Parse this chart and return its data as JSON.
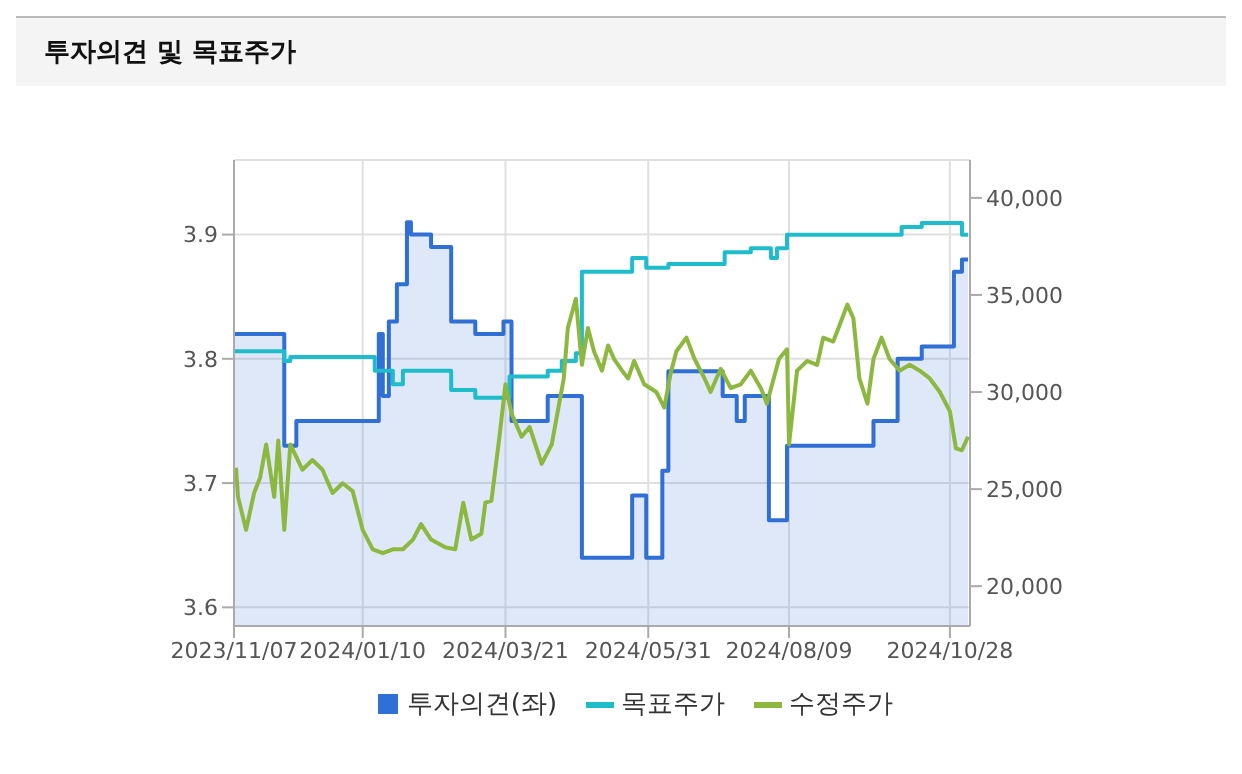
{
  "chart_data": {
    "type": "line",
    "title": "투자의견 및 목표주가",
    "xlim": [
      "2023-11-07",
      "2024-11-07"
    ],
    "xticks": [
      {
        "value": "2023-11-07",
        "label": "2023/11/07"
      },
      {
        "value": "2024-01-10",
        "label": "2024/01/10"
      },
      {
        "value": "2024-03-21",
        "label": "2024/03/21"
      },
      {
        "value": "2024-05-31",
        "label": "2024/05/31"
      },
      {
        "value": "2024-08-09",
        "label": "2024/08/09"
      },
      {
        "value": "2024-10-28",
        "label": "2024/10/28"
      }
    ],
    "ylim": [
      3.585,
      3.96
    ],
    "yticks": [
      3.6,
      3.7,
      3.8,
      3.9
    ],
    "y2lim": [
      17950,
      41950
    ],
    "y2ticks": [
      {
        "value": 20000,
        "label": "20,000"
      },
      {
        "value": 25000,
        "label": "25,000"
      },
      {
        "value": 30000,
        "label": "30,000"
      },
      {
        "value": 35000,
        "label": "35,000"
      },
      {
        "value": 40000,
        "label": "40,000"
      }
    ],
    "grid": true,
    "legend": "bottom",
    "marker": "none",
    "series": [
      {
        "name": "투자의견(좌)",
        "type": "area",
        "color": "#2f6fd6",
        "x": [
          "2023-11-07",
          "2023-12-02",
          "2023-12-02",
          "2023-12-08",
          "2023-12-08",
          "2024-01-18",
          "2024-01-18",
          "2024-01-20",
          "2024-01-20",
          "2024-01-23",
          "2024-01-23",
          "2024-01-27",
          "2024-01-27",
          "2024-02-01",
          "2024-02-01",
          "2024-02-03",
          "2024-02-03",
          "2024-02-13",
          "2024-02-13",
          "2024-02-23",
          "2024-02-23",
          "2024-03-06",
          "2024-03-06",
          "2024-03-20",
          "2024-03-20",
          "2024-03-24",
          "2024-03-24",
          "2024-04-11",
          "2024-04-11",
          "2024-04-28",
          "2024-04-28",
          "2024-05-23",
          "2024-05-23",
          "2024-05-30",
          "2024-05-30",
          "2024-06-07",
          "2024-06-07",
          "2024-06-10",
          "2024-06-10",
          "2024-07-07",
          "2024-07-07",
          "2024-07-14",
          "2024-07-14",
          "2024-07-18",
          "2024-07-18",
          "2024-07-30",
          "2024-07-30",
          "2024-08-08",
          "2024-08-08",
          "2024-09-20",
          "2024-09-20",
          "2024-10-02",
          "2024-10-02",
          "2024-10-14",
          "2024-10-14",
          "2024-10-30",
          "2024-10-30",
          "2024-11-03",
          "2024-11-03",
          "2024-11-06"
        ],
        "values": [
          3.82,
          3.82,
          3.73,
          3.73,
          3.75,
          3.75,
          3.82,
          3.82,
          3.77,
          3.77,
          3.83,
          3.83,
          3.86,
          3.86,
          3.91,
          3.91,
          3.9,
          3.9,
          3.89,
          3.89,
          3.83,
          3.83,
          3.82,
          3.82,
          3.83,
          3.83,
          3.75,
          3.75,
          3.77,
          3.77,
          3.64,
          3.64,
          3.69,
          3.69,
          3.64,
          3.64,
          3.71,
          3.71,
          3.79,
          3.79,
          3.77,
          3.77,
          3.75,
          3.75,
          3.77,
          3.77,
          3.67,
          3.67,
          3.73,
          3.73,
          3.75,
          3.75,
          3.8,
          3.8,
          3.81,
          3.81,
          3.87,
          3.87,
          3.88,
          3.88
        ]
      },
      {
        "name": "목표주가",
        "type": "step",
        "axis": "y2",
        "color": "#1fbccc",
        "x": [
          "2023-11-07",
          "2023-12-02",
          "2023-12-05",
          "2024-01-16",
          "2024-01-25",
          "2024-01-30",
          "2024-02-23",
          "2024-03-06",
          "2024-03-23",
          "2024-04-11",
          "2024-04-18",
          "2024-04-25",
          "2024-04-28",
          "2024-05-23",
          "2024-05-30",
          "2024-06-10",
          "2024-07-08",
          "2024-07-21",
          "2024-07-31",
          "2024-08-03",
          "2024-08-08",
          "2024-10-04",
          "2024-10-14",
          "2024-10-29",
          "2024-11-03",
          "2024-11-06"
        ],
        "values": [
          32100,
          31600,
          31800,
          31100,
          30400,
          31100,
          30100,
          29700,
          30800,
          31100,
          31600,
          32000,
          36200,
          36900,
          36400,
          36600,
          37200,
          37400,
          36900,
          37400,
          38100,
          38500,
          38700,
          38700,
          38100,
          38100
        ]
      },
      {
        "name": "수정주가",
        "axis": "y2",
        "color": "#8db83f",
        "x": [
          "2023-11-08",
          "2023-11-09",
          "2023-11-13",
          "2023-11-17",
          "2023-11-20",
          "2023-11-23",
          "2023-11-27",
          "2023-11-29",
          "2023-12-02",
          "2023-12-05",
          "2023-12-11",
          "2023-12-16",
          "2023-12-21",
          "2023-12-26",
          "2023-12-31",
          "2024-01-05",
          "2024-01-10",
          "2024-01-15",
          "2024-01-20",
          "2024-01-25",
          "2024-01-30",
          "2024-02-04",
          "2024-02-08",
          "2024-02-13",
          "2024-02-20",
          "2024-02-25",
          "2024-02-29",
          "2024-03-04",
          "2024-03-09",
          "2024-03-11",
          "2024-03-14",
          "2024-03-18",
          "2024-03-21",
          "2024-03-24",
          "2024-03-29",
          "2024-04-02",
          "2024-04-08",
          "2024-04-13",
          "2024-04-16",
          "2024-04-19",
          "2024-04-21",
          "2024-04-25",
          "2024-04-28",
          "2024-05-01",
          "2024-05-04",
          "2024-05-08",
          "2024-05-11",
          "2024-05-14",
          "2024-05-18",
          "2024-05-21",
          "2024-05-24",
          "2024-05-29",
          "2024-06-04",
          "2024-06-08",
          "2024-06-11",
          "2024-06-14",
          "2024-06-19",
          "2024-06-23",
          "2024-06-28",
          "2024-07-01",
          "2024-07-06",
          "2024-07-11",
          "2024-07-16",
          "2024-07-21",
          "2024-07-26",
          "2024-07-29",
          "2024-08-04",
          "2024-08-08",
          "2024-08-09",
          "2024-08-13",
          "2024-08-18",
          "2024-08-23",
          "2024-08-26",
          "2024-08-31",
          "2024-09-03",
          "2024-09-07",
          "2024-09-10",
          "2024-09-13",
          "2024-09-17",
          "2024-09-20",
          "2024-09-24",
          "2024-09-28",
          "2024-10-03",
          "2024-10-08",
          "2024-10-13",
          "2024-10-18",
          "2024-10-23",
          "2024-10-28",
          "2024-10-31",
          "2024-11-03",
          "2024-11-06"
        ],
        "values": [
          26100,
          24600,
          22900,
          24800,
          25600,
          27300,
          24600,
          27500,
          22900,
          27300,
          26000,
          26500,
          26000,
          24800,
          25300,
          24900,
          22900,
          21900,
          21700,
          21900,
          21900,
          22400,
          23200,
          22400,
          22000,
          21900,
          24300,
          22400,
          22700,
          24300,
          24400,
          27700,
          30400,
          28900,
          27700,
          28200,
          26300,
          27300,
          29000,
          30700,
          33300,
          34800,
          31400,
          33300,
          32100,
          31100,
          32400,
          31700,
          31100,
          30700,
          31600,
          30400,
          30000,
          29200,
          30900,
          32100,
          32800,
          31700,
          30700,
          30000,
          31200,
          30200,
          30400,
          31100,
          30200,
          29400,
          31700,
          32200,
          27300,
          31100,
          31600,
          31400,
          32800,
          32600,
          33400,
          34500,
          33800,
          30700,
          29400,
          31700,
          32800,
          31700,
          31100,
          31400,
          31100,
          30700,
          30000,
          29000,
          27100,
          27000,
          27700
        ]
      }
    ]
  }
}
